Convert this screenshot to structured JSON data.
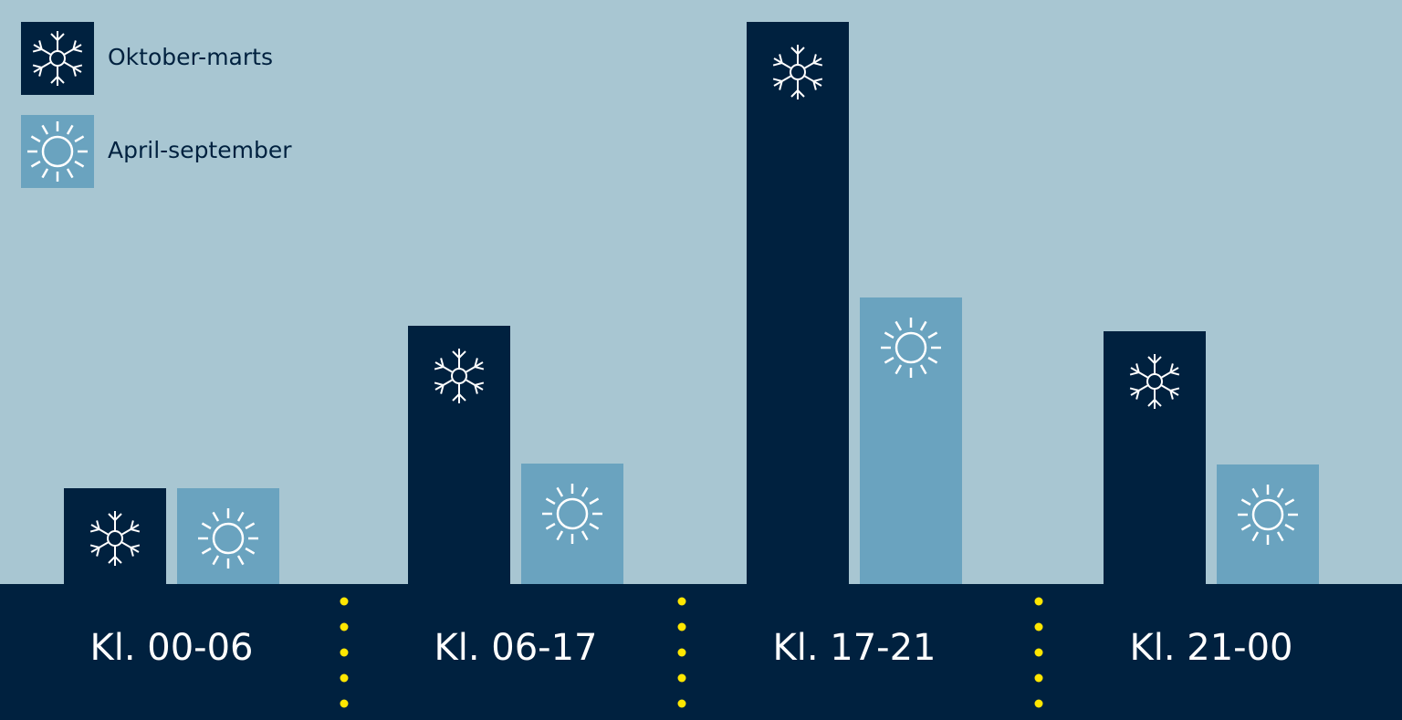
{
  "chart_data": {
    "type": "bar",
    "categories": [
      "Kl. 00-06",
      "Kl. 06-17",
      "Kl. 17-21",
      "Kl. 21-00"
    ],
    "series": [
      {
        "name": "Oktober-marts",
        "color": "#00213f",
        "values": [
          105,
          283,
          616,
          277
        ]
      },
      {
        "name": "April-september",
        "color": "#6aa3bf",
        "values": [
          105,
          132,
          314,
          131
        ]
      }
    ],
    "ylim": [
      0,
      616
    ]
  }
}
